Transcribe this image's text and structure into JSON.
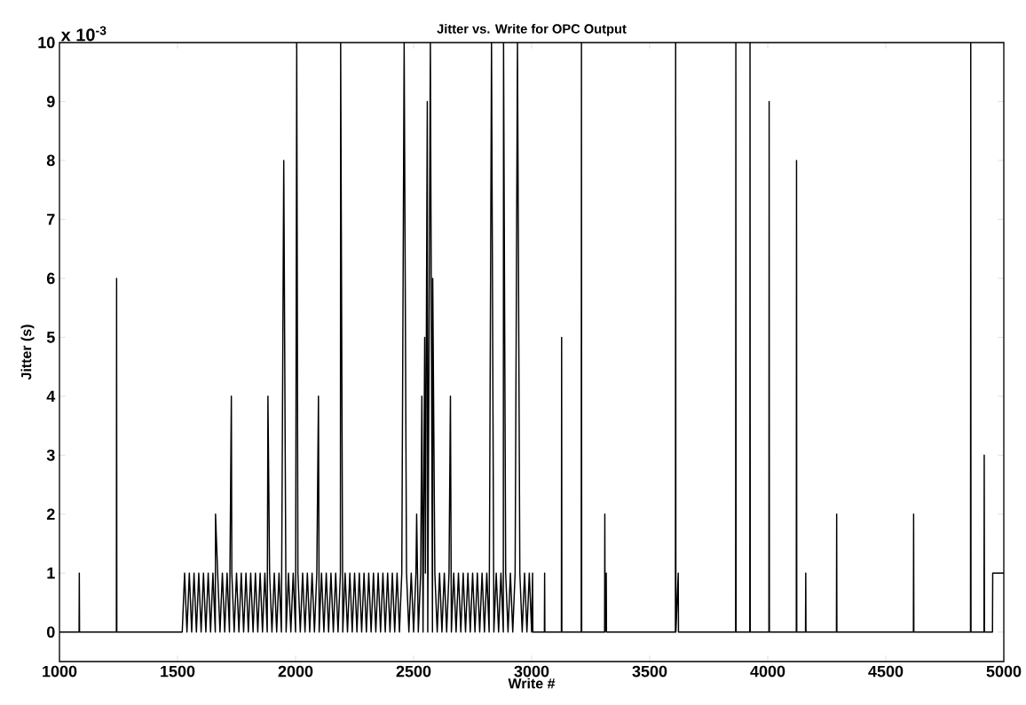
{
  "chart_data": {
    "type": "line",
    "title": "Jitter vs. Write for OPC Output",
    "xlabel": "Write #",
    "ylabel": "Jitter (s)",
    "annotations": [
      "x 10$^{-3}$"
    ],
    "color": "#000000",
    "xlim": [
      1000,
      5000
    ],
    "ylim": [
      -0.5,
      10
    ],
    "xticks": [
      1000,
      1500,
      2000,
      2500,
      3000,
      3500,
      4000,
      4500,
      5000
    ],
    "yticks": [
      0,
      1,
      2,
      3,
      4,
      5,
      6,
      7,
      8,
      9,
      10
    ],
    "x": [
      1000,
      1083,
      1084,
      1085,
      1241,
      1242,
      1243,
      1520,
      1530,
      1540,
      1550,
      1560,
      1570,
      1580,
      1590,
      1600,
      1610,
      1620,
      1630,
      1640,
      1650,
      1660,
      1661,
      1670,
      1680,
      1690,
      1700,
      1710,
      1720,
      1728,
      1730,
      1740,
      1750,
      1760,
      1770,
      1780,
      1790,
      1800,
      1810,
      1820,
      1830,
      1840,
      1850,
      1860,
      1870,
      1880,
      1883,
      1890,
      1900,
      1910,
      1920,
      1930,
      1940,
      1950,
      1960,
      1970,
      1980,
      1990,
      2000,
      2005,
      2010,
      2020,
      2030,
      2040,
      2050,
      2060,
      2070,
      2080,
      2090,
      2097,
      2100,
      2110,
      2120,
      2130,
      2140,
      2150,
      2160,
      2170,
      2180,
      2190,
      2191,
      2200,
      2210,
      2220,
      2230,
      2240,
      2250,
      2260,
      2270,
      2280,
      2290,
      2300,
      2310,
      2320,
      2330,
      2340,
      2350,
      2360,
      2370,
      2380,
      2390,
      2400,
      2410,
      2420,
      2430,
      2440,
      2450,
      2460,
      2470,
      2480,
      2490,
      2500,
      2510,
      2513,
      2520,
      2530,
      2535,
      2540,
      2547,
      2550,
      2558,
      2560,
      2571,
      2580,
      2581,
      2590,
      2600,
      2610,
      2620,
      2630,
      2640,
      2650,
      2656,
      2660,
      2670,
      2680,
      2690,
      2700,
      2710,
      2720,
      2730,
      2740,
      2750,
      2760,
      2770,
      2780,
      2790,
      2800,
      2810,
      2820,
      2830,
      2840,
      2850,
      2860,
      2870,
      2880,
      2881,
      2890,
      2900,
      2910,
      2920,
      2930,
      2940,
      2950,
      2960,
      2970,
      2980,
      2990,
      3000,
      3004,
      3005,
      3054,
      3055,
      3056,
      3126,
      3127,
      3128,
      3210,
      3211,
      3212,
      3309,
      3310,
      3311,
      3316,
      3317,
      3609,
      3610,
      3611,
      3621,
      3622,
      3864,
      3865,
      3866,
      3924,
      3925,
      3926,
      4005,
      4006,
      4007,
      4121,
      4122,
      4123,
      4160,
      4161,
      4162,
      4291,
      4292,
      4293,
      4617,
      4618,
      4619,
      4859,
      4860,
      4861,
      4916,
      4917,
      4918,
      4952,
      4953,
      5000
    ],
    "values": [
      0,
      0,
      1,
      0,
      0,
      6,
      0,
      0,
      1,
      0,
      1,
      0,
      1,
      0,
      1,
      0,
      1,
      0,
      1,
      0,
      1,
      0,
      2,
      1,
      0,
      1,
      0,
      1,
      0,
      4,
      1,
      0,
      1,
      0,
      1,
      0,
      1,
      0,
      1,
      0,
      1,
      0,
      1,
      0,
      1,
      0,
      4,
      1,
      0,
      1,
      0,
      1,
      0,
      8,
      0,
      1,
      0,
      1,
      0,
      10,
      1,
      0,
      1,
      0,
      1,
      0,
      1,
      0,
      1,
      4,
      0,
      1,
      0,
      1,
      0,
      1,
      0,
      1,
      0,
      1,
      10,
      0,
      1,
      0,
      1,
      0,
      1,
      0,
      1,
      0,
      1,
      0,
      1,
      0,
      1,
      0,
      1,
      0,
      1,
      0,
      1,
      0,
      1,
      0,
      1,
      0,
      1,
      10,
      1,
      0,
      1,
      0,
      1,
      2,
      0,
      1,
      4,
      0,
      5,
      1,
      9,
      0,
      10,
      0,
      6,
      1,
      0,
      1,
      0,
      1,
      0,
      1,
      4,
      0,
      1,
      0,
      1,
      0,
      1,
      0,
      1,
      0,
      1,
      0,
      1,
      0,
      1,
      0,
      1,
      0,
      10,
      0,
      1,
      0,
      1,
      0,
      10,
      1,
      0,
      1,
      0,
      1,
      10,
      1,
      0,
      1,
      0,
      1,
      0,
      1,
      0,
      0,
      1,
      0,
      0,
      5,
      0,
      0,
      10,
      0,
      0,
      2,
      0,
      1,
      0,
      0,
      10,
      0,
      1,
      0,
      0,
      10,
      0,
      0,
      10,
      0,
      0,
      9,
      0,
      0,
      8,
      0,
      0,
      1,
      0,
      0,
      2,
      0,
      0,
      2,
      0,
      0,
      10,
      0,
      0,
      3,
      0,
      0,
      1,
      1
    ]
  }
}
